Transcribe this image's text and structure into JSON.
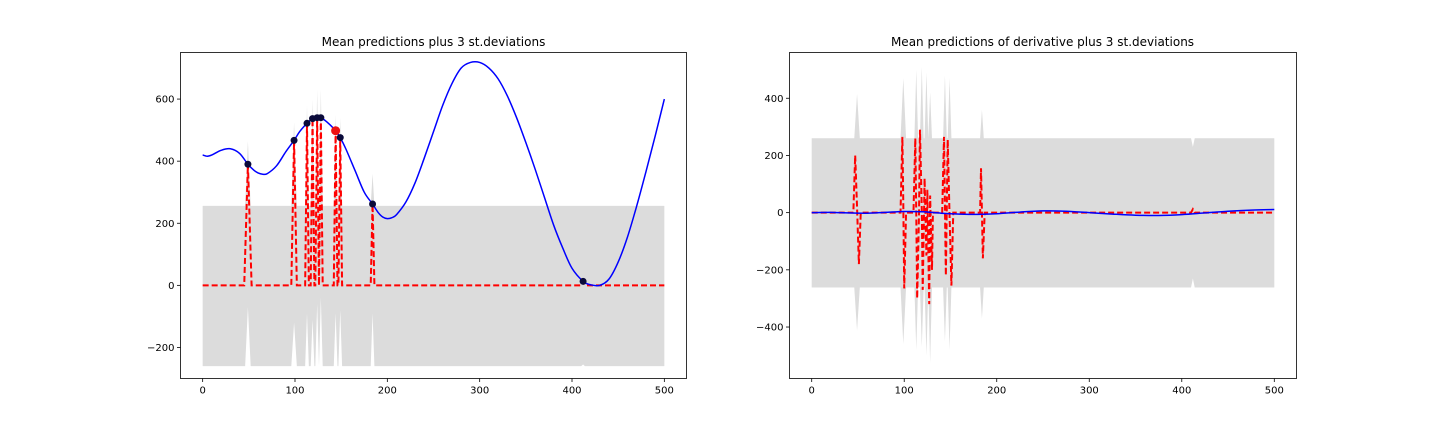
{
  "colors": {
    "band": "#dcdcdc",
    "mean": "#0000ff",
    "zero_line": "#ff0000",
    "obs_dark": "#0a0a3a",
    "obs_red": "#ee1111"
  },
  "chart_data": [
    {
      "type": "line",
      "title": "Mean predictions plus 3 st.deviations",
      "xlabel": "",
      "ylabel": "",
      "xlim": [
        -24,
        524
      ],
      "ylim": [
        -300,
        750
      ],
      "xticks": [
        0,
        100,
        200,
        300,
        400,
        500
      ],
      "xtick_labels": [
        "0",
        "100",
        "200",
        "300",
        "400",
        "500"
      ],
      "yticks": [
        -200,
        0,
        200,
        400,
        600
      ],
      "ytick_labels": [
        "−200",
        "0",
        "200",
        "400",
        "600"
      ],
      "grid": false,
      "observations": {
        "x": [
          49,
          99,
          113,
          119,
          124,
          128,
          144,
          149,
          184,
          412
        ],
        "y": [
          390,
          467,
          522,
          537,
          540,
          540,
          498,
          476,
          262,
          13
        ],
        "highlight_index": 6
      },
      "mean": {
        "x": [
          0,
          5,
          10,
          20,
          30,
          40,
          49,
          55,
          60,
          65,
          70,
          80,
          90,
          99,
          105,
          113,
          119,
          124,
          128,
          135,
          144,
          149,
          155,
          165,
          175,
          184,
          190,
          195,
          200,
          205,
          210,
          220,
          230,
          240,
          250,
          260,
          270,
          280,
          290,
          300,
          310,
          320,
          330,
          340,
          350,
          360,
          370,
          380,
          390,
          400,
          412,
          420,
          430,
          440,
          450,
          460,
          470,
          480,
          490,
          500
        ],
        "y": [
          420,
          416,
          420,
          435,
          440,
          425,
          390,
          372,
          362,
          358,
          360,
          385,
          430,
          467,
          495,
          522,
          537,
          540,
          540,
          525,
          498,
          476,
          440,
          370,
          300,
          262,
          235,
          220,
          215,
          218,
          228,
          268,
          330,
          410,
          495,
          580,
          650,
          700,
          718,
          718,
          700,
          665,
          610,
          540,
          460,
          375,
          285,
          195,
          120,
          55,
          13,
          2,
          0,
          20,
          75,
          155,
          255,
          365,
          480,
          600
        ]
      },
      "band_base": {
        "upper": 256,
        "lower": -260
      },
      "band_bumps": [
        {
          "center": 49,
          "halfwidth": 3,
          "upper": 465,
          "lower": -70
        },
        {
          "center": 99,
          "halfwidth": 3,
          "upper": 525,
          "lower": -120
        },
        {
          "center": 113,
          "halfwidth": 2,
          "upper": 580,
          "lower": -90
        },
        {
          "center": 119,
          "halfwidth": 2,
          "upper": 600,
          "lower": -110
        },
        {
          "center": 124,
          "halfwidth": 2,
          "upper": 630,
          "lower": -60
        },
        {
          "center": 128,
          "halfwidth": 2,
          "upper": 632,
          "lower": -40
        },
        {
          "center": 144,
          "halfwidth": 2,
          "upper": 550,
          "lower": -90
        },
        {
          "center": 149,
          "halfwidth": 2,
          "upper": 540,
          "lower": -80
        },
        {
          "center": 184,
          "halfwidth": 2,
          "upper": 360,
          "lower": -90
        },
        {
          "center": 412,
          "halfwidth": 2,
          "upper": 256,
          "lower": -255
        }
      ],
      "spike_series": {
        "name": "",
        "baseline": 0,
        "spikes": [
          {
            "x": 49,
            "halfwidth": 4,
            "peak": 390
          },
          {
            "x": 99,
            "halfwidth": 3,
            "peak": 467
          },
          {
            "x": 113,
            "halfwidth": 2,
            "peak": 522
          },
          {
            "x": 119,
            "halfwidth": 2,
            "peak": 537
          },
          {
            "x": 124,
            "halfwidth": 2,
            "peak": 540
          },
          {
            "x": 128,
            "halfwidth": 2,
            "peak": 540
          },
          {
            "x": 144,
            "halfwidth": 2,
            "peak": 498
          },
          {
            "x": 149,
            "halfwidth": 2,
            "peak": 476
          },
          {
            "x": 184,
            "halfwidth": 2,
            "peak": 262
          },
          {
            "x": 412,
            "halfwidth": 2,
            "peak": 13
          }
        ]
      }
    },
    {
      "type": "line",
      "title": "Mean predictions of derivative plus 3 st.deviations",
      "xlabel": "",
      "ylabel": "",
      "xlim": [
        -24,
        524
      ],
      "ylim": [
        -580,
        560
      ],
      "xticks": [
        0,
        100,
        200,
        300,
        400,
        500
      ],
      "xtick_labels": [
        "0",
        "100",
        "200",
        "300",
        "400",
        "500"
      ],
      "yticks": [
        -400,
        -200,
        0,
        200,
        400
      ],
      "ytick_labels": [
        "−400",
        "−200",
        "0",
        "200",
        "400"
      ],
      "grid": false,
      "mean": {
        "x": [
          0,
          20,
          40,
          60,
          80,
          100,
          120,
          140,
          160,
          180,
          200,
          225,
          250,
          275,
          300,
          325,
          350,
          375,
          400,
          425,
          450,
          475,
          500
        ],
        "y": [
          0,
          1,
          -1,
          -2,
          1,
          4,
          3,
          -2,
          -5,
          -6,
          -4,
          2,
          6,
          5,
          0,
          -5,
          -9,
          -10,
          -7,
          -1,
          5,
          9,
          11
        ]
      },
      "band_base": {
        "upper": 260,
        "lower": -262
      },
      "band_bumps": [
        {
          "center": 49,
          "halfwidth": 3,
          "upper": 415,
          "lower": -412
        },
        {
          "center": 99,
          "halfwidth": 3,
          "upper": 470,
          "lower": -460
        },
        {
          "center": 113,
          "halfwidth": 2,
          "upper": 500,
          "lower": -480
        },
        {
          "center": 119,
          "halfwidth": 2,
          "upper": 510,
          "lower": -470
        },
        {
          "center": 124,
          "halfwidth": 2,
          "upper": 490,
          "lower": -500
        },
        {
          "center": 128,
          "halfwidth": 2,
          "upper": 420,
          "lower": -525
        },
        {
          "center": 144,
          "halfwidth": 2,
          "upper": 480,
          "lower": -450
        },
        {
          "center": 149,
          "halfwidth": 2,
          "upper": 470,
          "lower": -480
        },
        {
          "center": 184,
          "halfwidth": 2,
          "upper": 360,
          "lower": -370
        },
        {
          "center": 412,
          "halfwidth": 2,
          "upper": 230,
          "lower": -230
        }
      ],
      "zero_series": {
        "name": "",
        "points": [
          [
            0,
            0
          ],
          [
            45,
            0
          ],
          [
            47,
            200
          ],
          [
            49,
            20
          ],
          [
            51,
            -180
          ],
          [
            53,
            0
          ],
          [
            96,
            0
          ],
          [
            98,
            265
          ],
          [
            99,
            30
          ],
          [
            100,
            -265
          ],
          [
            102,
            0
          ],
          [
            110,
            0
          ],
          [
            112,
            260
          ],
          [
            113,
            0
          ],
          [
            114,
            -300
          ],
          [
            116,
            0
          ],
          [
            117,
            290
          ],
          [
            119,
            10
          ],
          [
            120,
            -270
          ],
          [
            122,
            120
          ],
          [
            124,
            -150
          ],
          [
            125,
            80
          ],
          [
            127,
            -320
          ],
          [
            128,
            60
          ],
          [
            130,
            -200
          ],
          [
            131,
            0
          ],
          [
            141,
            0
          ],
          [
            143,
            265
          ],
          [
            144,
            20
          ],
          [
            145,
            -220
          ],
          [
            147,
            255
          ],
          [
            149,
            -10
          ],
          [
            151,
            -255
          ],
          [
            153,
            0
          ],
          [
            182,
            0
          ],
          [
            183,
            155
          ],
          [
            184,
            0
          ],
          [
            185,
            -160
          ],
          [
            187,
            0
          ],
          [
            410,
            0
          ],
          [
            412,
            12
          ],
          [
            414,
            0
          ],
          [
            500,
            0
          ]
        ]
      }
    }
  ]
}
